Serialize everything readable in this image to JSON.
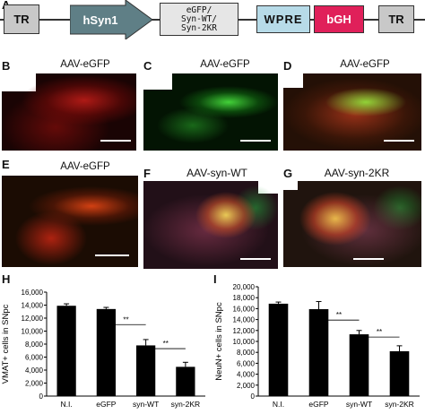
{
  "panel_labels": {
    "a": "A",
    "b": "B",
    "c": "C",
    "d": "D",
    "e": "E",
    "f": "F",
    "g": "G",
    "h": "H",
    "i": "I"
  },
  "construct": {
    "tr_left": "TR",
    "promoter": "hSyn1",
    "insert_line1": "eGFP/",
    "insert_line2": "Syn-WT/",
    "insert_line3": "Syn-2KR",
    "wpre": "WPRE",
    "bgh": "bGH",
    "tr_right": "TR",
    "colors": {
      "tr": "#c8c8c8",
      "promoter": "#5f7f86",
      "insert": "#e6e6e6",
      "wpre": "#b7dbe8",
      "bgh": "#e0205a"
    }
  },
  "micrographs": {
    "b": {
      "title": "AAV-eGFP"
    },
    "c": {
      "title": "AAV-eGFP"
    },
    "d": {
      "title": "AAV-eGFP"
    },
    "e": {
      "title": "AAV-eGFP"
    },
    "f": {
      "title": "AAV-syn-WT"
    },
    "g": {
      "title": "AAV-syn-2KR"
    }
  },
  "chart_data": [
    {
      "type": "bar",
      "panel": "H",
      "categories": [
        "N.I.",
        "eGFP",
        "syn-WT",
        "syn-2KR"
      ],
      "values": [
        13900,
        13400,
        7800,
        4500
      ],
      "errors": [
        300,
        250,
        900,
        700
      ],
      "ylabel": "VMAT+ cells in SNpc",
      "ylim": [
        0,
        16000
      ],
      "yticks": [
        0,
        2000,
        4000,
        6000,
        8000,
        10000,
        12000,
        14000,
        16000
      ],
      "ytick_labels": [
        "0",
        "2,000",
        "4,000",
        "6,000",
        "8,000",
        "10,000",
        "12,000",
        "14,000",
        "16,000"
      ],
      "annotations": [
        {
          "text": "**",
          "from": 1,
          "to": 2,
          "y": 11000
        },
        {
          "text": "**",
          "from": 2,
          "to": 3,
          "y": 7300
        }
      ],
      "bar_color": "#000000"
    },
    {
      "type": "bar",
      "panel": "I",
      "categories": [
        "N.I.",
        "eGFP",
        "syn-WT",
        "syn-2KR"
      ],
      "values": [
        16900,
        15900,
        11300,
        8200
      ],
      "errors": [
        300,
        1400,
        700,
        1000
      ],
      "ylabel": "NeuN+ cells in SNpc",
      "ylim": [
        0,
        20000
      ],
      "yticks": [
        0,
        2000,
        4000,
        6000,
        8000,
        10000,
        12000,
        14000,
        16000,
        18000,
        20000
      ],
      "ytick_labels": [
        "0",
        "2,000",
        "4,000",
        "6,000",
        "8,000",
        "10,000",
        "12,000",
        "14,000",
        "16,000",
        "18,000",
        "20,000"
      ],
      "annotations": [
        {
          "text": "**",
          "from": 1,
          "to": 2,
          "y": 13900
        },
        {
          "text": "**",
          "from": 2,
          "to": 3,
          "y": 10800
        }
      ],
      "bar_color": "#000000"
    }
  ]
}
